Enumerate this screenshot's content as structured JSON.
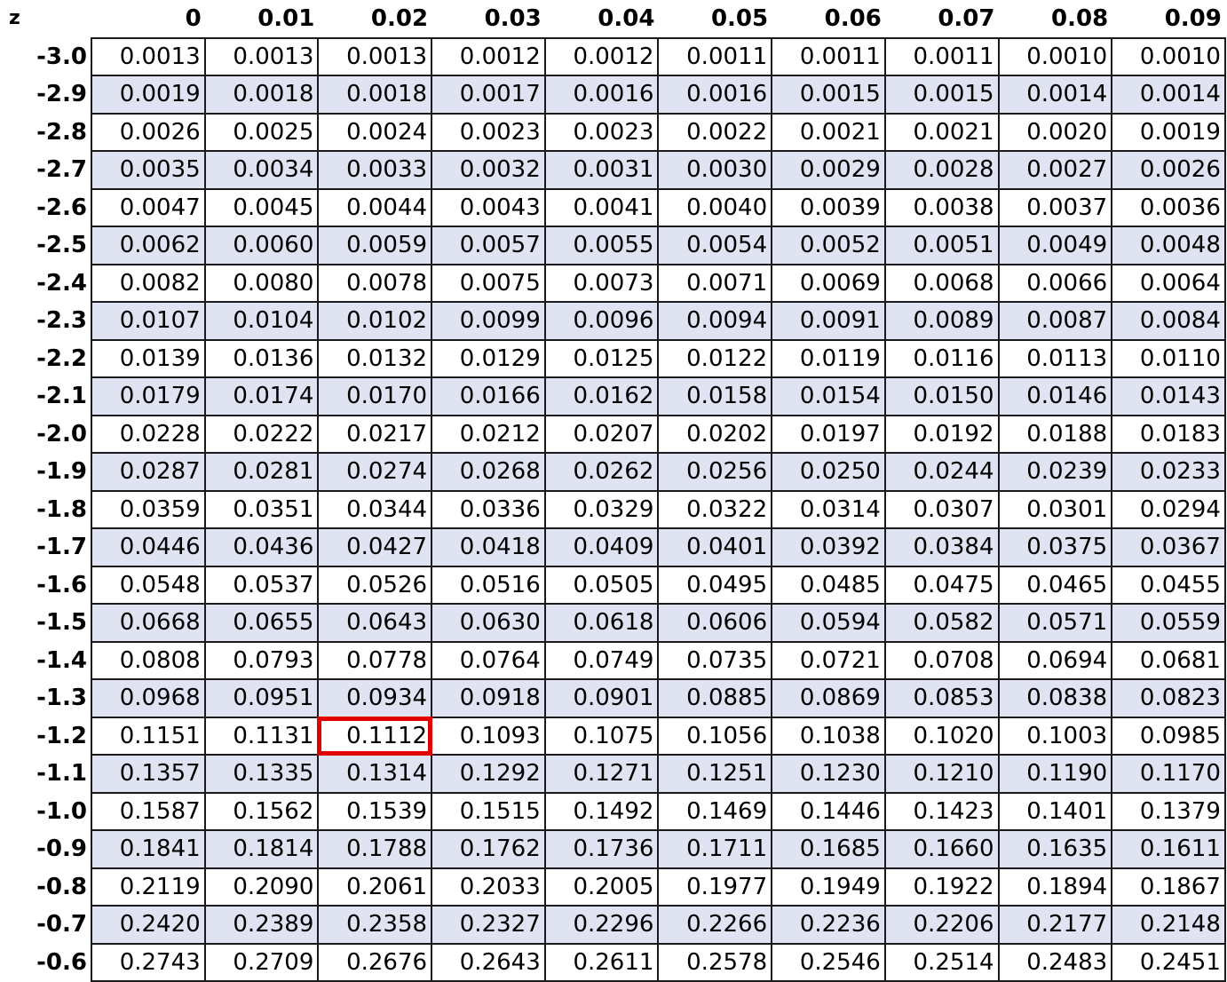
{
  "colors": {
    "row_shading": "#dfe3f2",
    "highlight_border": "#e00000"
  },
  "header": [
    "z",
    "0",
    "0.01",
    "0.02",
    "0.03",
    "0.04",
    "0.05",
    "0.06",
    "0.07",
    "0.08",
    "0.09"
  ],
  "rows": [
    {
      "z": "-3.0",
      "v": [
        "0.0013",
        "0.0013",
        "0.0013",
        "0.0012",
        "0.0012",
        "0.0011",
        "0.0011",
        "0.0011",
        "0.0010",
        "0.0010"
      ]
    },
    {
      "z": "-2.9",
      "v": [
        "0.0019",
        "0.0018",
        "0.0018",
        "0.0017",
        "0.0016",
        "0.0016",
        "0.0015",
        "0.0015",
        "0.0014",
        "0.0014"
      ]
    },
    {
      "z": "-2.8",
      "v": [
        "0.0026",
        "0.0025",
        "0.0024",
        "0.0023",
        "0.0023",
        "0.0022",
        "0.0021",
        "0.0021",
        "0.0020",
        "0.0019"
      ]
    },
    {
      "z": "-2.7",
      "v": [
        "0.0035",
        "0.0034",
        "0.0033",
        "0.0032",
        "0.0031",
        "0.0030",
        "0.0029",
        "0.0028",
        "0.0027",
        "0.0026"
      ]
    },
    {
      "z": "-2.6",
      "v": [
        "0.0047",
        "0.0045",
        "0.0044",
        "0.0043",
        "0.0041",
        "0.0040",
        "0.0039",
        "0.0038",
        "0.0037",
        "0.0036"
      ]
    },
    {
      "z": "-2.5",
      "v": [
        "0.0062",
        "0.0060",
        "0.0059",
        "0.0057",
        "0.0055",
        "0.0054",
        "0.0052",
        "0.0051",
        "0.0049",
        "0.0048"
      ]
    },
    {
      "z": "-2.4",
      "v": [
        "0.0082",
        "0.0080",
        "0.0078",
        "0.0075",
        "0.0073",
        "0.0071",
        "0.0069",
        "0.0068",
        "0.0066",
        "0.0064"
      ]
    },
    {
      "z": "-2.3",
      "v": [
        "0.0107",
        "0.0104",
        "0.0102",
        "0.0099",
        "0.0096",
        "0.0094",
        "0.0091",
        "0.0089",
        "0.0087",
        "0.0084"
      ]
    },
    {
      "z": "-2.2",
      "v": [
        "0.0139",
        "0.0136",
        "0.0132",
        "0.0129",
        "0.0125",
        "0.0122",
        "0.0119",
        "0.0116",
        "0.0113",
        "0.0110"
      ]
    },
    {
      "z": "-2.1",
      "v": [
        "0.0179",
        "0.0174",
        "0.0170",
        "0.0166",
        "0.0162",
        "0.0158",
        "0.0154",
        "0.0150",
        "0.0146",
        "0.0143"
      ]
    },
    {
      "z": "-2.0",
      "v": [
        "0.0228",
        "0.0222",
        "0.0217",
        "0.0212",
        "0.0207",
        "0.0202",
        "0.0197",
        "0.0192",
        "0.0188",
        "0.0183"
      ]
    },
    {
      "z": "-1.9",
      "v": [
        "0.0287",
        "0.0281",
        "0.0274",
        "0.0268",
        "0.0262",
        "0.0256",
        "0.0250",
        "0.0244",
        "0.0239",
        "0.0233"
      ]
    },
    {
      "z": "-1.8",
      "v": [
        "0.0359",
        "0.0351",
        "0.0344",
        "0.0336",
        "0.0329",
        "0.0322",
        "0.0314",
        "0.0307",
        "0.0301",
        "0.0294"
      ]
    },
    {
      "z": "-1.7",
      "v": [
        "0.0446",
        "0.0436",
        "0.0427",
        "0.0418",
        "0.0409",
        "0.0401",
        "0.0392",
        "0.0384",
        "0.0375",
        "0.0367"
      ]
    },
    {
      "z": "-1.6",
      "v": [
        "0.0548",
        "0.0537",
        "0.0526",
        "0.0516",
        "0.0505",
        "0.0495",
        "0.0485",
        "0.0475",
        "0.0465",
        "0.0455"
      ]
    },
    {
      "z": "-1.5",
      "v": [
        "0.0668",
        "0.0655",
        "0.0643",
        "0.0630",
        "0.0618",
        "0.0606",
        "0.0594",
        "0.0582",
        "0.0571",
        "0.0559"
      ]
    },
    {
      "z": "-1.4",
      "v": [
        "0.0808",
        "0.0793",
        "0.0778",
        "0.0764",
        "0.0749",
        "0.0735",
        "0.0721",
        "0.0708",
        "0.0694",
        "0.0681"
      ]
    },
    {
      "z": "-1.3",
      "v": [
        "0.0968",
        "0.0951",
        "0.0934",
        "0.0918",
        "0.0901",
        "0.0885",
        "0.0869",
        "0.0853",
        "0.0838",
        "0.0823"
      ]
    },
    {
      "z": "-1.2",
      "v": [
        "0.1151",
        "0.1131",
        "0.1112",
        "0.1093",
        "0.1075",
        "0.1056",
        "0.1038",
        "0.1020",
        "0.1003",
        "0.0985"
      ]
    },
    {
      "z": "-1.1",
      "v": [
        "0.1357",
        "0.1335",
        "0.1314",
        "0.1292",
        "0.1271",
        "0.1251",
        "0.1230",
        "0.1210",
        "0.1190",
        "0.1170"
      ]
    },
    {
      "z": "-1.0",
      "v": [
        "0.1587",
        "0.1562",
        "0.1539",
        "0.1515",
        "0.1492",
        "0.1469",
        "0.1446",
        "0.1423",
        "0.1401",
        "0.1379"
      ]
    },
    {
      "z": "-0.9",
      "v": [
        "0.1841",
        "0.1814",
        "0.1788",
        "0.1762",
        "0.1736",
        "0.1711",
        "0.1685",
        "0.1660",
        "0.1635",
        "0.1611"
      ]
    },
    {
      "z": "-0.8",
      "v": [
        "0.2119",
        "0.2090",
        "0.2061",
        "0.2033",
        "0.2005",
        "0.1977",
        "0.1949",
        "0.1922",
        "0.1894",
        "0.1867"
      ]
    },
    {
      "z": "-0.7",
      "v": [
        "0.2420",
        "0.2389",
        "0.2358",
        "0.2327",
        "0.2296",
        "0.2266",
        "0.2236",
        "0.2206",
        "0.2177",
        "0.2148"
      ]
    },
    {
      "z": "-0.6",
      "v": [
        "0.2743",
        "0.2709",
        "0.2676",
        "0.2643",
        "0.2611",
        "0.2578",
        "0.2546",
        "0.2514",
        "0.2483",
        "0.2451"
      ]
    }
  ],
  "highlight": {
    "row": "-1.2",
    "col": "0.02"
  }
}
